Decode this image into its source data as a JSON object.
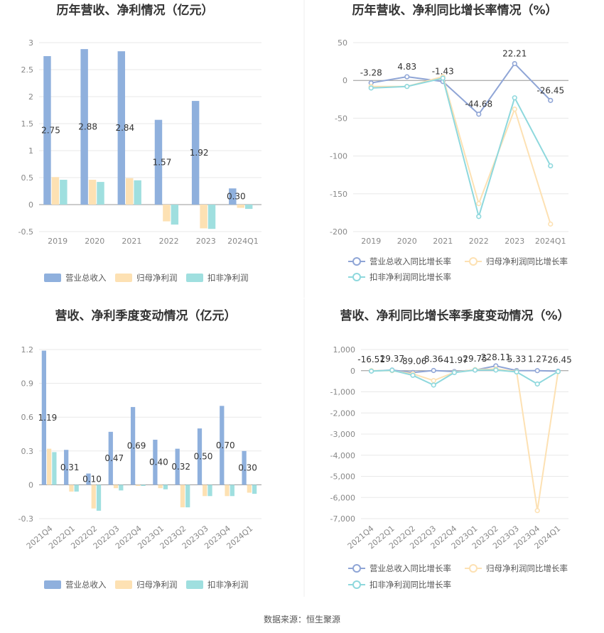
{
  "colors": {
    "revenue": "#8fb0dd",
    "parent_net": "#fde1b3",
    "deducted_net": "#9fdfdf",
    "rev_growth": "#8fa5d6",
    "parent_growth": "#fde1b3",
    "deducted_growth": "#8ed8dd"
  },
  "source": "数据来源：恒生聚源",
  "chart_data": [
    {
      "type": "bar",
      "title": "历年营收、净利情况（亿元）",
      "categories": [
        "2019",
        "2020",
        "2021",
        "2022",
        "2023",
        "2024Q1"
      ],
      "series": [
        {
          "name": "营业总收入",
          "values": [
            2.75,
            2.88,
            2.84,
            1.57,
            1.92,
            0.3
          ],
          "labels": [
            "2.75",
            "2.88",
            "2.84",
            "1.57",
            "1.92",
            "0.30"
          ]
        },
        {
          "name": "归母净利润",
          "values": [
            0.51,
            0.46,
            0.49,
            -0.31,
            -0.44,
            -0.06
          ]
        },
        {
          "name": "扣非净利润",
          "values": [
            0.46,
            0.42,
            0.45,
            -0.37,
            -0.45,
            -0.08
          ]
        }
      ],
      "ylim": [
        -0.5,
        3
      ],
      "yticks": [
        "-0.5",
        "0",
        "0.5",
        "1",
        "1.5",
        "2",
        "2.5",
        "3"
      ],
      "grid": true,
      "legend_position": "bottom"
    },
    {
      "type": "line",
      "title": "历年营收、净利同比增长率情况（%）",
      "categories": [
        "2019",
        "2020",
        "2021",
        "2022",
        "2023",
        "2024Q1"
      ],
      "series": [
        {
          "name": "营业总收入同比增长率",
          "values": [
            -3.28,
            4.83,
            -1.43,
            -44.68,
            22.21,
            -26.45
          ],
          "labels": [
            "-3.28",
            "4.83",
            "-1.43",
            "-44.68",
            "22.21",
            "-26.45"
          ]
        },
        {
          "name": "归母净利润同比增长率",
          "values": [
            -8,
            -8,
            5,
            -163,
            -38,
            -190
          ]
        },
        {
          "name": "扣非净利润同比增长率",
          "values": [
            -10,
            -8,
            3,
            -180,
            -23,
            -113
          ]
        }
      ],
      "ylim": [
        -200,
        50
      ],
      "yticks": [
        "-200",
        "-150",
        "-100",
        "-50",
        "0",
        "50"
      ],
      "grid": true,
      "legend_position": "bottom"
    },
    {
      "type": "bar",
      "title": "营收、净利季度变动情况（亿元）",
      "categories": [
        "2021Q4",
        "2022Q1",
        "2022Q2",
        "2022Q3",
        "2022Q4",
        "2023Q1",
        "2023Q2",
        "2023Q3",
        "2023Q4",
        "2024Q1"
      ],
      "series": [
        {
          "name": "营业总收入",
          "values": [
            1.19,
            0.31,
            0.1,
            0.47,
            0.69,
            0.4,
            0.32,
            0.5,
            0.7,
            0.3
          ],
          "labels": [
            "1.19",
            "0.31",
            "0.10",
            "0.47",
            "0.69",
            "0.40",
            "0.32",
            "0.50",
            "0.70",
            "0.30"
          ]
        },
        {
          "name": "归母净利润",
          "values": [
            0.32,
            -0.06,
            -0.21,
            -0.03,
            -0.01,
            -0.03,
            -0.2,
            -0.1,
            -0.1,
            -0.07
          ]
        },
        {
          "name": "扣非净利润",
          "values": [
            0.29,
            -0.06,
            -0.23,
            -0.05,
            -0.01,
            -0.04,
            -0.2,
            -0.1,
            -0.1,
            -0.08
          ]
        }
      ],
      "ylim": [
        -0.3,
        1.2
      ],
      "yticks": [
        "-0.3",
        "0",
        "0.3",
        "0.6",
        "0.9",
        "1.2"
      ],
      "grid": true,
      "legend_position": "bottom"
    },
    {
      "type": "line",
      "title": "营收、净利同比增长率季度变动情况（%）",
      "categories": [
        "2021Q4",
        "2022Q1",
        "2022Q2",
        "2022Q3",
        "2022Q4",
        "2023Q1",
        "2023Q2",
        "2023Q3",
        "2023Q4",
        "2024Q1"
      ],
      "series": [
        {
          "name": "营业总收入同比增长率",
          "values": [
            -16.51,
            29.37,
            -89.06,
            8.36,
            -41.97,
            29.75,
            228.11,
            5.33,
            1.27,
            -26.45
          ],
          "labels": [
            "-16.51",
            "29.37",
            "-89.06",
            "8.36",
            "-41.97",
            "29.75",
            "228.11",
            "5.33",
            "1.27",
            "-26.45"
          ]
        },
        {
          "name": "归母净利润同比增长率",
          "values": [
            0,
            0,
            -150,
            -470,
            -80,
            50,
            80,
            -40,
            -6620,
            -50
          ]
        },
        {
          "name": "扣非净利润同比增长率",
          "values": [
            -20,
            20,
            -220,
            -680,
            -90,
            30,
            30,
            -60,
            -630,
            -40
          ]
        }
      ],
      "ylim": [
        -7000,
        1000
      ],
      "yticks": [
        "-7,000",
        "-6,000",
        "-5,000",
        "-4,000",
        "-3,000",
        "-2,000",
        "-1,000",
        "0",
        "1,000"
      ],
      "grid": true,
      "legend_position": "bottom"
    }
  ]
}
